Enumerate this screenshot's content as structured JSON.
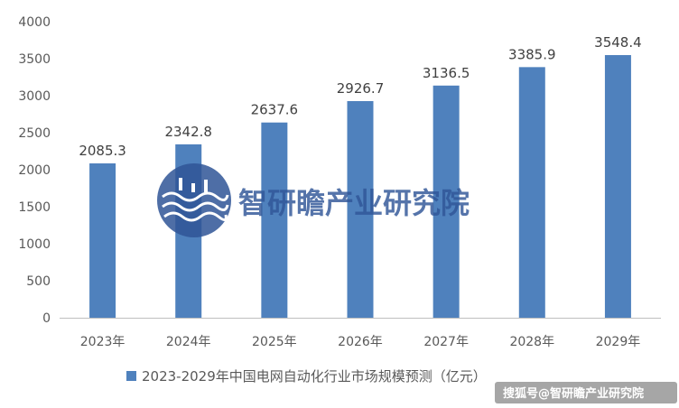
{
  "chart_data": {
    "type": "bar",
    "categories": [
      "2023年",
      "2024年",
      "2025年",
      "2026年",
      "2027年",
      "2028年",
      "2029年"
    ],
    "series": [
      {
        "name": "2023-2029年中国电网自动化行业市场规模预测（亿元）",
        "values": [
          2085.3,
          2342.8,
          2637.6,
          2926.7,
          3136.5,
          3385.9,
          3548.4
        ],
        "color": "#4f81bd"
      }
    ],
    "title": "",
    "xlabel": "",
    "ylabel": "",
    "ylim": [
      0,
      4000
    ],
    "yticks": [
      0,
      500,
      1000,
      1500,
      2000,
      2500,
      3000,
      3500,
      4000
    ],
    "grid": false,
    "legend_position": "bottom",
    "data_labels": true
  },
  "watermark": {
    "text": "智研瞻产业研究院",
    "color": "#2f5597"
  },
  "credit": {
    "text": "搜狐号@智研瞻产业研究院"
  },
  "colors": {
    "axis": "#bfbfbf",
    "tick_text": "#595959",
    "label_text": "#404040"
  }
}
